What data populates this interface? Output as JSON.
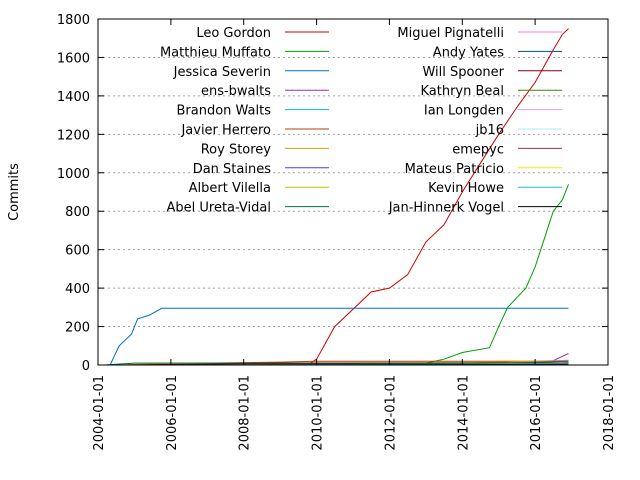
{
  "chart_data": {
    "type": "line",
    "title": "",
    "xlabel": "",
    "ylabel": "Commits",
    "xlim": [
      "2004-01-01",
      "2018-01-01"
    ],
    "ylim": [
      0,
      1800
    ],
    "x_ticks": [
      "2004-01-01",
      "2006-01-01",
      "2008-01-01",
      "2010-01-01",
      "2012-01-01",
      "2014-01-01",
      "2016-01-01",
      "2018-01-01"
    ],
    "y_ticks": [
      0,
      200,
      400,
      600,
      800,
      1000,
      1200,
      1400,
      1600,
      1800
    ],
    "grid": true,
    "legend_position": "top-inside, two columns",
    "series": [
      {
        "name": "Leo Gordon",
        "color": "#cc0000",
        "points": [
          [
            "2009-10-01",
            0
          ],
          [
            "2010-01-01",
            30
          ],
          [
            "2010-07-01",
            200
          ],
          [
            "2011-01-01",
            290
          ],
          [
            "2011-07-01",
            380
          ],
          [
            "2012-01-01",
            400
          ],
          [
            "2012-07-01",
            470
          ],
          [
            "2013-01-01",
            640
          ],
          [
            "2013-07-01",
            730
          ],
          [
            "2014-01-01",
            900
          ],
          [
            "2014-07-01",
            1050
          ],
          [
            "2015-01-01",
            1200
          ],
          [
            "2015-07-01",
            1340
          ],
          [
            "2016-01-01",
            1470
          ],
          [
            "2016-07-01",
            1640
          ],
          [
            "2016-10-01",
            1720
          ],
          [
            "2016-12-01",
            1750
          ]
        ]
      },
      {
        "name": "Matthieu Muffato",
        "color": "#00a000",
        "points": [
          [
            "2013-01-01",
            10
          ],
          [
            "2013-07-01",
            30
          ],
          [
            "2014-01-01",
            65
          ],
          [
            "2014-10-01",
            90
          ],
          [
            "2015-01-01",
            200
          ],
          [
            "2015-04-01",
            300
          ],
          [
            "2015-10-01",
            400
          ],
          [
            "2016-01-01",
            510
          ],
          [
            "2016-07-01",
            800
          ],
          [
            "2016-10-01",
            860
          ],
          [
            "2016-12-01",
            940
          ]
        ]
      },
      {
        "name": "Jessica Severin",
        "color": "#0070c0",
        "points": [
          [
            "2004-05-01",
            0
          ],
          [
            "2004-08-01",
            100
          ],
          [
            "2004-12-01",
            160
          ],
          [
            "2005-02-01",
            240
          ],
          [
            "2005-06-01",
            260
          ],
          [
            "2005-10-01",
            295
          ],
          [
            "2016-12-01",
            295
          ]
        ]
      },
      {
        "name": "ens-bwalts",
        "color": "#9030c0",
        "points": [
          [
            "2016-04-01",
            0
          ],
          [
            "2016-08-01",
            30
          ],
          [
            "2016-12-01",
            60
          ]
        ]
      },
      {
        "name": "Brandon Walts",
        "color": "#00c0c0",
        "points": [
          [
            "2016-05-01",
            0
          ],
          [
            "2016-12-01",
            15
          ]
        ]
      },
      {
        "name": "Javier Herrero",
        "color": "#b04000",
        "points": [
          [
            "2005-01-01",
            0
          ],
          [
            "2007-01-01",
            10
          ],
          [
            "2009-01-01",
            15
          ],
          [
            "2010-01-01",
            20
          ],
          [
            "2016-12-01",
            20
          ]
        ]
      },
      {
        "name": "Roy Storey",
        "color": "#d0a000",
        "points": [
          [
            "2013-01-01",
            0
          ],
          [
            "2014-01-01",
            10
          ],
          [
            "2016-12-01",
            25
          ]
        ]
      },
      {
        "name": "Dan Staines",
        "color": "#4040d0",
        "points": [
          [
            "2013-06-01",
            0
          ],
          [
            "2016-12-01",
            20
          ]
        ]
      },
      {
        "name": "Albert Vilella",
        "color": "#c0c000",
        "points": [
          [
            "2004-06-01",
            0
          ],
          [
            "2005-06-01",
            5
          ],
          [
            "2007-06-01",
            10
          ],
          [
            "2016-12-01",
            10
          ]
        ]
      },
      {
        "name": "Abel Ureta-Vidal",
        "color": "#007040",
        "points": [
          [
            "2004-03-01",
            0
          ],
          [
            "2005-01-01",
            10
          ],
          [
            "2016-12-01",
            12
          ]
        ]
      },
      {
        "name": "Miguel Pignatelli",
        "color": "#e080e0",
        "points": [
          [
            "2014-01-01",
            0
          ],
          [
            "2016-12-01",
            10
          ]
        ]
      },
      {
        "name": "Andy Yates",
        "color": "#005080",
        "points": [
          [
            "2012-01-01",
            0
          ],
          [
            "2016-12-01",
            8
          ]
        ]
      },
      {
        "name": "Will Spooner",
        "color": "#800020",
        "points": [
          [
            "2004-06-01",
            0
          ],
          [
            "2008-01-01",
            6
          ],
          [
            "2016-12-01",
            6
          ]
        ]
      },
      {
        "name": "Kathryn Beal",
        "color": "#408000",
        "points": [
          [
            "2007-01-01",
            0
          ],
          [
            "2016-12-01",
            7
          ]
        ]
      },
      {
        "name": "Ian Longden",
        "color": "#d0a0f0",
        "points": [
          [
            "2010-01-01",
            0
          ],
          [
            "2016-12-01",
            5
          ]
        ]
      },
      {
        "name": "jb16",
        "color": "#a0f0f0",
        "points": [
          [
            "2011-01-01",
            0
          ],
          [
            "2016-12-01",
            4
          ]
        ]
      },
      {
        "name": "emepyc",
        "color": "#a03060",
        "points": [
          [
            "2012-01-01",
            0
          ],
          [
            "2016-12-01",
            4
          ]
        ]
      },
      {
        "name": "Mateus Patricio",
        "color": "#f0f000",
        "points": [
          [
            "2015-01-01",
            0
          ],
          [
            "2016-12-01",
            3
          ]
        ]
      },
      {
        "name": "Kevin Howe",
        "color": "#20c0d0",
        "points": [
          [
            "2005-01-01",
            0
          ],
          [
            "2016-12-01",
            3
          ]
        ]
      },
      {
        "name": "Jan-Hinnerk Vogel",
        "color": "#000000",
        "points": [
          [
            "2005-01-01",
            0
          ],
          [
            "2016-12-01",
            2
          ]
        ]
      }
    ]
  }
}
